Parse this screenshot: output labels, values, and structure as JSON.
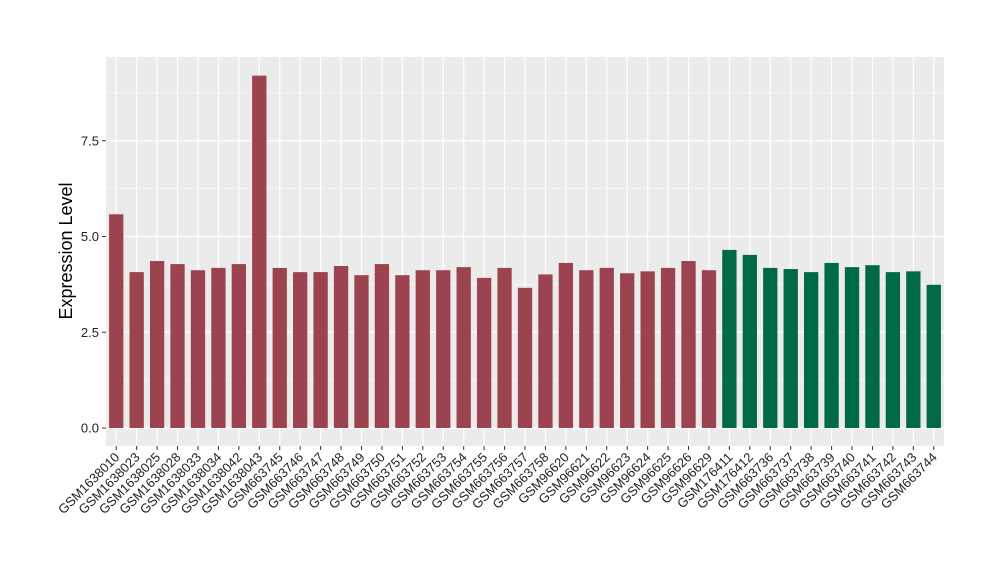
{
  "chart_data": {
    "type": "bar",
    "title": "",
    "xlabel": "",
    "ylabel": "Expression Level",
    "ylim": [
      0,
      9.2
    ],
    "yticks": [
      0.0,
      2.5,
      5.0,
      7.5
    ],
    "ytick_labels": [
      "0.0",
      "2.5",
      "5.0",
      "7.5"
    ],
    "grid": true,
    "legend": "none",
    "colors": {
      "group1": "#9B4450",
      "group2": "#006A45",
      "panel": "#EBEBEB",
      "grid": "#FFFFFF",
      "axis": "#333333"
    },
    "categories": [
      "GSM1638010",
      "GSM1638023",
      "GSM1638025",
      "GSM1638028",
      "GSM1638033",
      "GSM1638034",
      "GSM1638042",
      "GSM1638043",
      "GSM663745",
      "GSM663746",
      "GSM663747",
      "GSM663748",
      "GSM663749",
      "GSM663750",
      "GSM663751",
      "GSM663752",
      "GSM663753",
      "GSM663754",
      "GSM663755",
      "GSM663756",
      "GSM663757",
      "GSM663758",
      "GSM96620",
      "GSM96621",
      "GSM96622",
      "GSM96623",
      "GSM96624",
      "GSM96625",
      "GSM96626",
      "GSM96629",
      "GSM176411",
      "GSM176412",
      "GSM663736",
      "GSM663737",
      "GSM663738",
      "GSM663739",
      "GSM663740",
      "GSM663741",
      "GSM663742",
      "GSM663743",
      "GSM663744"
    ],
    "values": [
      5.58,
      4.07,
      4.36,
      4.28,
      4.12,
      4.18,
      4.28,
      9.2,
      4.18,
      4.07,
      4.07,
      4.23,
      3.99,
      4.28,
      3.99,
      4.12,
      4.12,
      4.2,
      3.92,
      4.18,
      3.66,
      4.01,
      4.31,
      4.12,
      4.18,
      4.04,
      4.09,
      4.18,
      4.36,
      4.12,
      4.65,
      4.52,
      4.18,
      4.15,
      4.07,
      4.31,
      4.2,
      4.25,
      4.07,
      4.09,
      3.74
    ],
    "groups": [
      1,
      1,
      1,
      1,
      1,
      1,
      1,
      1,
      1,
      1,
      1,
      1,
      1,
      1,
      1,
      1,
      1,
      1,
      1,
      1,
      1,
      1,
      1,
      1,
      1,
      1,
      1,
      1,
      1,
      1,
      2,
      2,
      2,
      2,
      2,
      2,
      2,
      2,
      2,
      2,
      2
    ]
  }
}
